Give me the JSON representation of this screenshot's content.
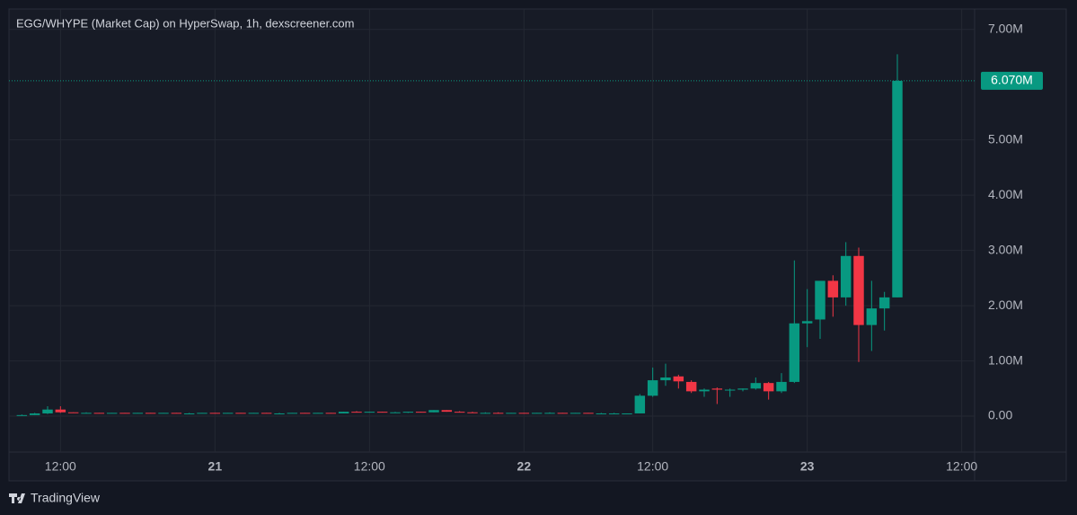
{
  "chart_data": {
    "type": "candlestick",
    "title": "EGG/WHYPE (Market Cap) on HyperSwap, 1h, dexscreener.com",
    "brand": "TradingView",
    "up_color": "#089981",
    "down_color": "#f23645",
    "grid": true,
    "x": [
      0,
      1,
      2,
      3,
      4,
      5,
      6,
      7,
      8,
      9,
      10,
      11,
      12,
      13,
      14,
      15,
      16,
      17,
      18,
      19,
      20,
      21,
      22,
      23,
      24,
      25,
      26,
      27,
      28,
      29,
      30,
      31,
      32,
      33,
      34,
      35,
      36,
      37,
      38,
      39,
      40,
      41,
      42,
      43,
      44,
      45,
      46,
      47,
      48,
      49,
      50,
      51,
      52,
      53,
      54,
      55,
      56,
      57,
      58,
      59,
      60,
      61,
      62,
      63,
      64,
      65,
      66,
      67,
      68
    ],
    "open": [
      0.02,
      0.02,
      0.05,
      0.12,
      0.07,
      0.06,
      0.06,
      0.05,
      0.06,
      0.05,
      0.06,
      0.05,
      0.06,
      0.05,
      0.05,
      0.06,
      0.05,
      0.06,
      0.05,
      0.06,
      0.05,
      0.05,
      0.06,
      0.05,
      0.06,
      0.05,
      0.08,
      0.07,
      0.08,
      0.07,
      0.07,
      0.08,
      0.07,
      0.11,
      0.08,
      0.07,
      0.06,
      0.06,
      0.05,
      0.06,
      0.05,
      0.06,
      0.06,
      0.05,
      0.06,
      0.05,
      0.05,
      0.05,
      0.05,
      0.37,
      0.65,
      0.72,
      0.62,
      0.45,
      0.5,
      0.48,
      0.48,
      0.5,
      0.6,
      0.45,
      0.62,
      1.68,
      1.75,
      2.45,
      2.15,
      2.9,
      1.65,
      1.95,
      2.15
    ],
    "high": [
      0.03,
      0.06,
      0.18,
      0.18,
      0.07,
      0.07,
      0.06,
      0.06,
      0.06,
      0.06,
      0.06,
      0.06,
      0.06,
      0.06,
      0.06,
      0.06,
      0.06,
      0.06,
      0.06,
      0.06,
      0.06,
      0.06,
      0.06,
      0.06,
      0.06,
      0.08,
      0.09,
      0.08,
      0.08,
      0.08,
      0.08,
      0.08,
      0.11,
      0.11,
      0.09,
      0.08,
      0.07,
      0.07,
      0.06,
      0.06,
      0.06,
      0.07,
      0.06,
      0.06,
      0.06,
      0.06,
      0.06,
      0.05,
      0.4,
      0.88,
      0.95,
      0.75,
      0.65,
      0.5,
      0.52,
      0.5,
      0.5,
      0.7,
      0.62,
      0.78,
      2.82,
      2.3,
      2.45,
      2.55,
      3.15,
      3.05,
      2.45,
      2.25,
      6.55
    ],
    "low": [
      0.01,
      0.02,
      0.04,
      0.06,
      0.06,
      0.06,
      0.05,
      0.05,
      0.05,
      0.05,
      0.05,
      0.05,
      0.05,
      0.05,
      0.05,
      0.05,
      0.05,
      0.05,
      0.05,
      0.05,
      0.05,
      0.05,
      0.05,
      0.05,
      0.05,
      0.05,
      0.07,
      0.07,
      0.07,
      0.07,
      0.06,
      0.07,
      0.07,
      0.08,
      0.07,
      0.06,
      0.05,
      0.05,
      0.05,
      0.05,
      0.05,
      0.05,
      0.05,
      0.05,
      0.05,
      0.05,
      0.04,
      0.04,
      0.05,
      0.35,
      0.55,
      0.5,
      0.42,
      0.35,
      0.22,
      0.35,
      0.45,
      0.48,
      0.3,
      0.42,
      0.6,
      1.25,
      1.4,
      1.8,
      2.0,
      0.98,
      1.18,
      1.55,
      2.15
    ],
    "close": [
      0.02,
      0.05,
      0.12,
      0.07,
      0.06,
      0.06,
      0.05,
      0.06,
      0.05,
      0.06,
      0.05,
      0.06,
      0.05,
      0.05,
      0.06,
      0.05,
      0.06,
      0.05,
      0.06,
      0.05,
      0.05,
      0.06,
      0.05,
      0.06,
      0.05,
      0.08,
      0.07,
      0.08,
      0.07,
      0.07,
      0.08,
      0.07,
      0.11,
      0.08,
      0.07,
      0.06,
      0.06,
      0.05,
      0.06,
      0.05,
      0.06,
      0.06,
      0.05,
      0.06,
      0.05,
      0.05,
      0.05,
      0.05,
      0.37,
      0.65,
      0.7,
      0.63,
      0.45,
      0.48,
      0.48,
      0.48,
      0.5,
      0.6,
      0.45,
      0.62,
      1.68,
      1.72,
      2.45,
      2.15,
      2.9,
      1.65,
      1.95,
      2.15,
      6.07
    ],
    "xlim": [
      -1,
      74
    ],
    "xticks": [
      {
        "value": 3,
        "label": "12:00"
      },
      {
        "value": 15,
        "label": "21"
      },
      {
        "value": 27,
        "label": "12:00"
      },
      {
        "value": 39,
        "label": "22"
      },
      {
        "value": 49,
        "label": "12:00"
      },
      {
        "value": 61,
        "label": "23"
      },
      {
        "value": 73,
        "label": "12:00"
      }
    ],
    "ylim": [
      -0.65,
      7.37
    ],
    "yticks": [
      {
        "value": 0,
        "label": "0.00"
      },
      {
        "value": 1,
        "label": "1.00M"
      },
      {
        "value": 2,
        "label": "2.00M"
      },
      {
        "value": 3,
        "label": "3.00M"
      },
      {
        "value": 4,
        "label": "4.00M"
      },
      {
        "value": 5,
        "label": "5.00M"
      },
      {
        "value": 7,
        "label": "7.00M"
      }
    ],
    "price_line": {
      "value": 6.07,
      "label": "6.070M"
    }
  }
}
